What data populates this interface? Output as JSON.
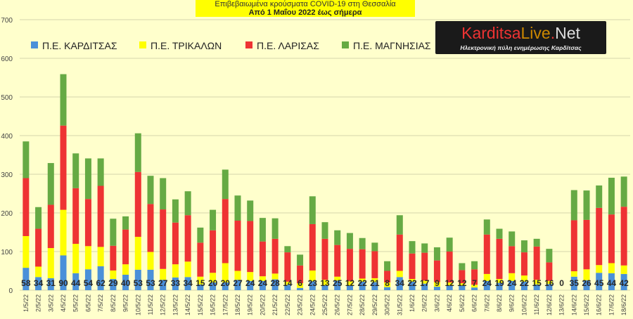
{
  "title": {
    "line1": "Επιβεβαιωμένα κρούσματα COVID-19 στη Θεσσαλία",
    "line2": "Από 1 Μαΐου 2022 έως σήμερα"
  },
  "logo": {
    "part1": "Karditsa",
    "part2": "Live",
    "part3": ".",
    "part4": "Net",
    "tagline": "Ηλεκτρονική πύλη ενημέρωσης Καρδίτσας"
  },
  "colors": {
    "background": "#ffffcc",
    "karditsa": "#4a90d9",
    "trikala": "#ffff00",
    "larisa": "#ee3333",
    "magnisia": "#66aa44",
    "grid": "#c8c8a0",
    "title_box": "#ffff00"
  },
  "chart_data": {
    "type": "bar",
    "stacked": true,
    "ylim": [
      0,
      700
    ],
    "yticks": [
      0,
      100,
      200,
      300,
      400,
      500,
      600,
      700
    ],
    "grid": true,
    "legend_position": "top",
    "categories": [
      "1/5/22",
      "2/5/22",
      "3/5/22",
      "4/5/22",
      "5/5/22",
      "6/5/22",
      "7/5/22",
      "8/5/22",
      "9/5/22",
      "10/5/22",
      "11/5/22",
      "12/5/22",
      "13/5/22",
      "14/5/22",
      "15/5/22",
      "16/5/22",
      "17/5/22",
      "18/5/22",
      "19/5/22",
      "20/5/22",
      "21/5/22",
      "22/5/22",
      "23/5/22",
      "24/5/22",
      "25/5/22",
      "26/5/22",
      "27/5/22",
      "28/5/22",
      "29/5/22",
      "30/5/22",
      "31/5/22",
      "1/6/22",
      "2/6/22",
      "3/6/22",
      "4/6/22",
      "5/6/22",
      "6/6/22",
      "7/6/22",
      "8/6/22",
      "9/6/22",
      "10/6/22",
      "11/6/22",
      "12/6/22",
      "13/6/22",
      "14/6/22",
      "15/6/22",
      "16/6/22",
      "17/6/22",
      "18/6/22"
    ],
    "series": [
      {
        "name": "Π.Ε. ΚΑΡΔΙΤΣΑΣ",
        "values": [
          58,
          34,
          31,
          90,
          44,
          54,
          62,
          29,
          40,
          53,
          53,
          27,
          33,
          34,
          15,
          20,
          20,
          27,
          24,
          24,
          28,
          14,
          6,
          23,
          13,
          25,
          12,
          22,
          21,
          8,
          34,
          22,
          17,
          9,
          12,
          12,
          7,
          24,
          19,
          24,
          22,
          15,
          16,
          0,
          35,
          26,
          45,
          44,
          42
        ]
      },
      {
        "name": "Π.Ε. ΤΡΙΚΑΛΩΝ",
        "values": [
          82,
          27,
          78,
          118,
          76,
          60,
          50,
          22,
          27,
          85,
          46,
          28,
          34,
          40,
          20,
          25,
          50,
          23,
          23,
          12,
          15,
          8,
          12,
          28,
          14,
          10,
          11,
          8,
          10,
          12,
          16,
          7,
          8,
          12,
          8,
          6,
          7,
          18,
          10,
          20,
          16,
          12,
          8,
          0,
          14,
          28,
          20,
          26,
          22
        ]
      },
      {
        "name": "Π.Ε. ΛΑΡΙΣΑΣ",
        "values": [
          150,
          98,
          112,
          218,
          144,
          122,
          158,
          64,
          90,
          168,
          124,
          154,
          108,
          120,
          88,
          110,
          166,
          130,
          132,
          90,
          90,
          76,
          46,
          120,
          106,
          82,
          84,
          76,
          70,
          30,
          94,
          66,
          72,
          56,
          80,
          34,
          40,
          102,
          104,
          70,
          60,
          86,
          48,
          0,
          132,
          128,
          148,
          126,
          152
        ]
      },
      {
        "name": "Π.Ε. ΜΑΓΝΗΣΙΑΣ",
        "values": [
          95,
          56,
          108,
          133,
          90,
          105,
          71,
          70,
          34,
          100,
          73,
          81,
          60,
          62,
          39,
          53,
          76,
          65,
          53,
          61,
          53,
          16,
          28,
          72,
          43,
          38,
          41,
          29,
          22,
          25,
          50,
          32,
          24,
          34,
          36,
          18,
          21,
          39,
          26,
          38,
          31,
          20,
          35,
          0,
          78,
          76,
          58,
          95,
          78
        ]
      }
    ],
    "label_series": "Π.Ε. ΚΑΡΔΙΤΣΑΣ"
  }
}
